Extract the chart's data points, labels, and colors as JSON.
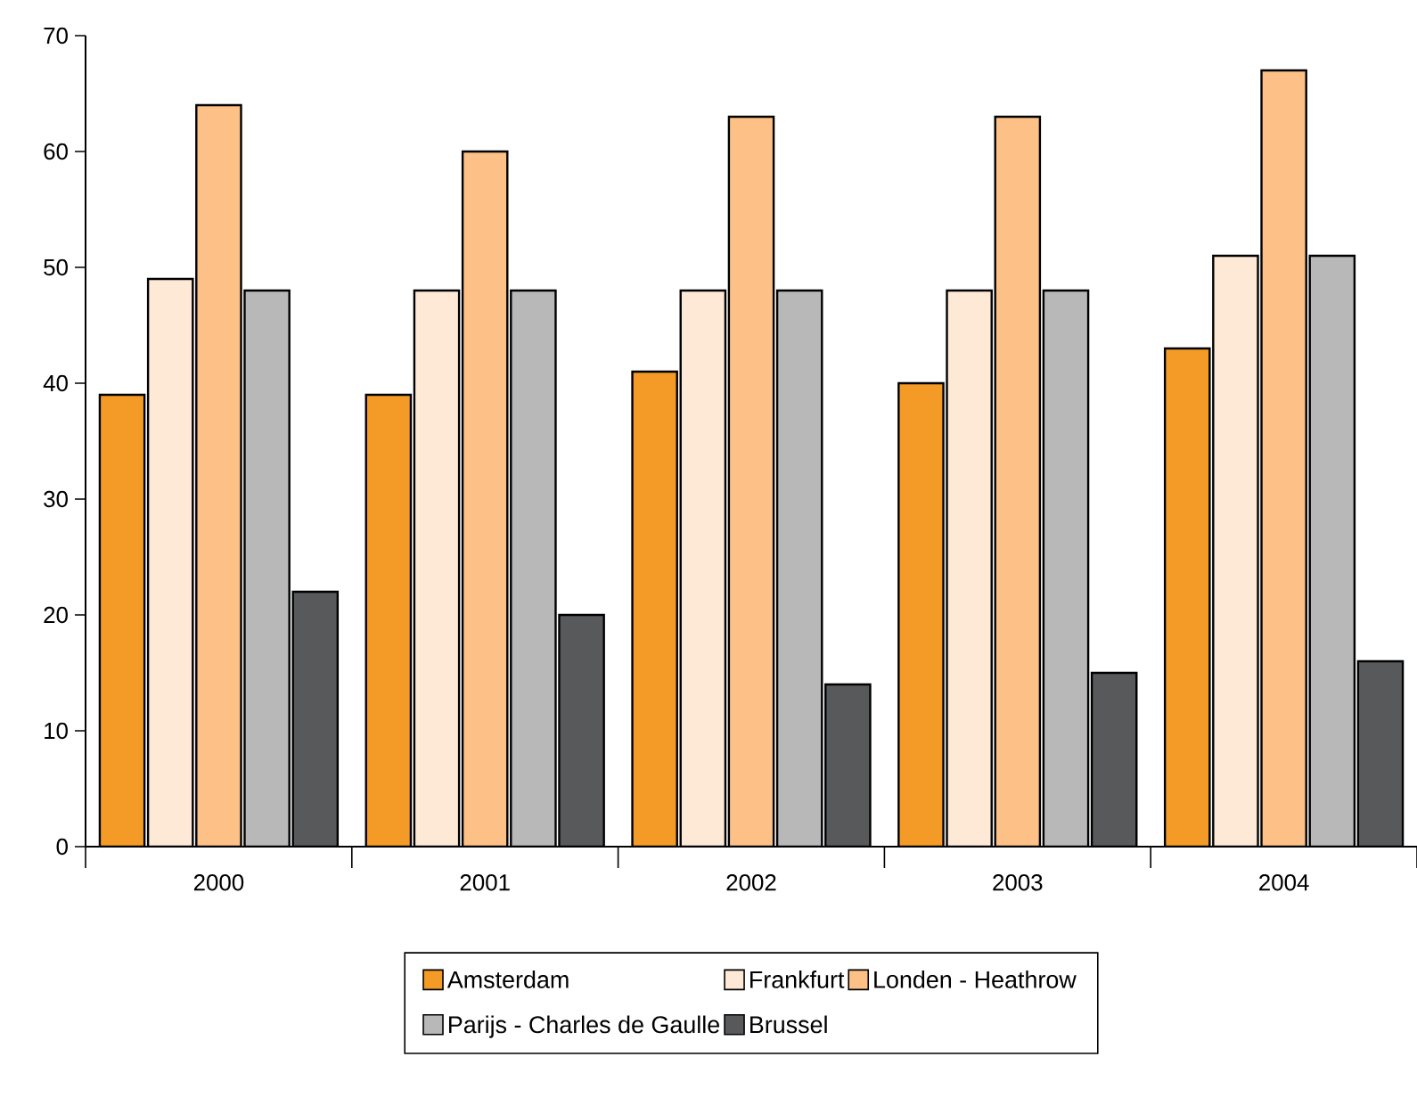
{
  "chart_data": {
    "type": "bar",
    "categories": [
      "2000",
      "2001",
      "2002",
      "2003",
      "2004"
    ],
    "series": [
      {
        "name": "Amsterdam",
        "color": "#f39a27",
        "values": [
          39,
          39,
          41,
          40,
          43
        ]
      },
      {
        "name": "Frankfurt",
        "color": "#fee8d6",
        "values": [
          49,
          48,
          48,
          48,
          51
        ]
      },
      {
        "name": "Londen - Heathrow",
        "color": "#fdc086",
        "values": [
          64,
          60,
          63,
          63,
          67
        ]
      },
      {
        "name": "Parijs - Charles de Gaulle",
        "color": "#b8b8b8",
        "values": [
          48,
          48,
          48,
          48,
          51
        ]
      },
      {
        "name": "Brussel",
        "color": "#58595b",
        "values": [
          22,
          20,
          14,
          15,
          16
        ]
      }
    ],
    "ylim": [
      0,
      70
    ],
    "yticks": [
      0,
      10,
      20,
      30,
      40,
      50,
      60,
      70
    ],
    "grid": false,
    "legend": "bottom"
  }
}
